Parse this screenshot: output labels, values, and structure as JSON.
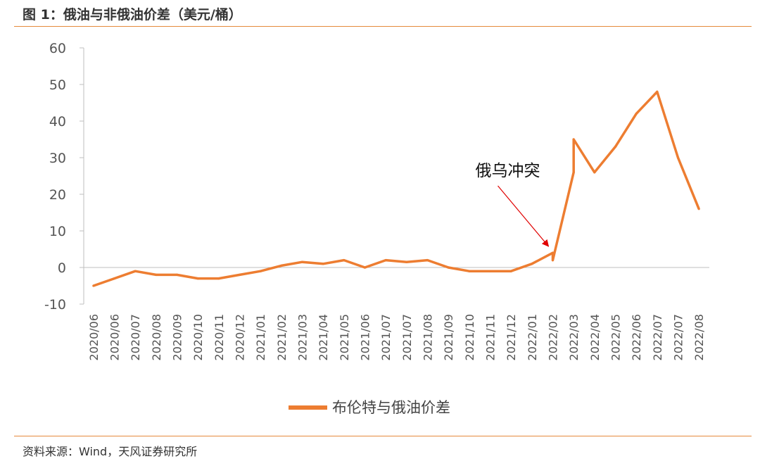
{
  "title": "图 1：俄油与非俄油价差（美元/桶）",
  "source": "资料来源：Wind，天风证券研究所",
  "colors": {
    "series": "#ed7d31",
    "rule": "#e58a3c",
    "arrow": "#e00000"
  },
  "chart_data": {
    "type": "line",
    "title": "图 1：俄油与非俄油价差（美元/桶）",
    "xlabel": "",
    "ylabel": "",
    "ylim": [
      -10,
      60
    ],
    "yticks": [
      -10,
      0,
      10,
      20,
      30,
      40,
      50,
      60
    ],
    "grid": false,
    "legend": "bottom",
    "x_tick_labels": [
      "2020/06",
      "2020/06",
      "2020/07",
      "2020/08",
      "2020/09",
      "2020/10",
      "2020/11",
      "2020/12",
      "2021/01",
      "2021/02",
      "2021/03",
      "2021/04",
      "2021/05",
      "2021/06",
      "2021/07",
      "2021/07",
      "2021/08",
      "2021/09",
      "2021/10",
      "2021/11",
      "2021/12",
      "2022/01",
      "2022/02",
      "2022/03",
      "2022/04",
      "2022/05",
      "2022/06",
      "2022/07",
      "2022/07",
      "2022/08"
    ],
    "series": [
      {
        "name": "布伦特与俄油价差",
        "x": [
          "2020/06",
          "2020/06",
          "2020/07",
          "2020/08",
          "2020/09",
          "2020/10",
          "2020/11",
          "2020/12",
          "2021/01",
          "2021/02",
          "2021/03",
          "2021/04",
          "2021/05",
          "2021/06",
          "2021/07",
          "2021/07",
          "2021/08",
          "2021/09",
          "2021/10",
          "2021/11",
          "2021/12",
          "2022/01",
          "2022/02",
          "2022/02",
          "2022/03",
          "2022/03",
          "2022/04",
          "2022/05",
          "2022/06",
          "2022/07",
          "2022/07",
          "2022/08"
        ],
        "values": [
          -5,
          -3,
          -1,
          -2,
          -2,
          -3,
          -3,
          -2,
          -1,
          0.5,
          1.5,
          1,
          2,
          0,
          2,
          1.5,
          2,
          0,
          -1,
          -1,
          -1,
          1,
          4,
          2,
          26,
          35,
          26,
          33,
          42,
          48,
          30,
          16
        ]
      }
    ],
    "annotations": [
      {
        "text": "俄乌冲突",
        "x": "2022/02",
        "y": 5
      }
    ]
  }
}
